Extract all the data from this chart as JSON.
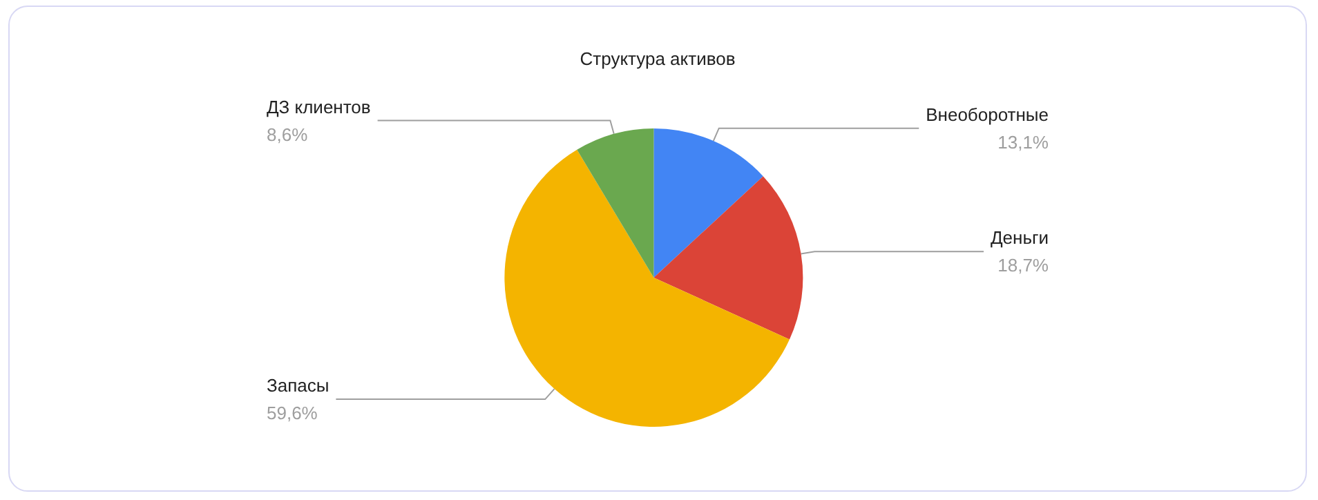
{
  "chart_data": {
    "type": "pie",
    "title": "Структура активов",
    "categories": [
      "Внеоборотные",
      "Деньги",
      "Запасы",
      "ДЗ клиентов"
    ],
    "values": [
      13.1,
      18.7,
      59.6,
      8.6
    ],
    "value_labels": [
      "13,1%",
      "18,7%",
      "59,6%",
      "8,6%"
    ],
    "colors": [
      "#4285f4",
      "#db4437",
      "#f4b400",
      "#6aa84f"
    ],
    "legend": false
  }
}
